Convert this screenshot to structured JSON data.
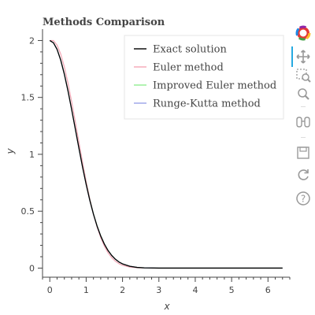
{
  "chart_data": {
    "type": "line",
    "title": "Methods Comparison",
    "xlabel": "x",
    "ylabel": "y",
    "xlim": [
      -0.2,
      6.6
    ],
    "ylim": [
      -0.08,
      2.1
    ],
    "x_ticks": [
      0,
      1,
      2,
      3,
      4,
      5,
      6
    ],
    "y_ticks": [
      0,
      0.5,
      1,
      1.5,
      2
    ],
    "x_tick_labels": [
      "0",
      "1",
      "2",
      "3",
      "4",
      "5",
      "6"
    ],
    "y_tick_labels": [
      "0",
      "0.5",
      "1",
      "1.5",
      "2"
    ],
    "grid": false,
    "legend_position": "top-right",
    "series": [
      {
        "name": "Exact solution",
        "color": "#000000",
        "x": [
          0,
          0.1,
          0.2,
          0.3,
          0.4,
          0.5,
          0.6,
          0.7,
          0.8,
          0.9,
          1.0,
          1.1,
          1.2,
          1.3,
          1.4,
          1.5,
          1.6,
          1.7,
          1.8,
          1.9,
          2.0,
          2.2,
          2.4,
          2.6,
          3.0,
          4.0,
          5.0,
          6.0,
          6.4
        ],
        "y": [
          2.0,
          1.98,
          1.922,
          1.828,
          1.704,
          1.558,
          1.395,
          1.225,
          1.055,
          0.889,
          0.736,
          0.596,
          0.474,
          0.369,
          0.282,
          0.211,
          0.155,
          0.112,
          0.079,
          0.054,
          0.037,
          0.016,
          0.006,
          0.002,
          0.0,
          0.0,
          0.0,
          0.0,
          0.0
        ]
      },
      {
        "name": "Euler method",
        "color": "#f4a6b5",
        "x": [
          0,
          0.1,
          0.2,
          0.3,
          0.4,
          0.5,
          0.6,
          0.7,
          0.8,
          0.9,
          1.0,
          1.1,
          1.2,
          1.3,
          1.4,
          1.5,
          1.6,
          1.7,
          1.8,
          1.9,
          2.0,
          2.2,
          2.4,
          2.6,
          3.0,
          4.0,
          5.0,
          6.0,
          6.4
        ],
        "y": [
          2.0,
          2.0,
          1.96,
          1.882,
          1.769,
          1.627,
          1.465,
          1.289,
          1.109,
          0.932,
          0.764,
          0.611,
          0.476,
          0.362,
          0.268,
          0.193,
          0.135,
          0.092,
          0.061,
          0.039,
          0.024,
          0.009,
          0.003,
          0.001,
          0.0,
          0.0,
          0.0,
          0.0,
          0.0
        ]
      },
      {
        "name": "Improved Euler method",
        "color": "#90ee90",
        "x": [
          0,
          0.1,
          0.2,
          0.3,
          0.4,
          0.5,
          0.6,
          0.7,
          0.8,
          0.9,
          1.0,
          1.1,
          1.2,
          1.3,
          1.4,
          1.5,
          1.6,
          1.7,
          1.8,
          1.9,
          2.0,
          2.2,
          2.4,
          2.6,
          3.0,
          4.0,
          5.0,
          6.0,
          6.4
        ],
        "y": [
          2.0,
          1.98,
          1.923,
          1.83,
          1.707,
          1.561,
          1.399,
          1.229,
          1.059,
          0.894,
          0.741,
          0.601,
          0.478,
          0.373,
          0.285,
          0.214,
          0.157,
          0.113,
          0.08,
          0.055,
          0.037,
          0.016,
          0.006,
          0.002,
          0.0,
          0.0,
          0.0,
          0.0,
          0.0
        ]
      },
      {
        "name": "Runge-Kutta method",
        "color": "#9aa2e8",
        "x": [
          0,
          0.1,
          0.2,
          0.3,
          0.4,
          0.5,
          0.6,
          0.7,
          0.8,
          0.9,
          1.0,
          1.1,
          1.2,
          1.3,
          1.4,
          1.5,
          1.6,
          1.7,
          1.8,
          1.9,
          2.0,
          2.2,
          2.4,
          2.6,
          3.0,
          4.0,
          5.0,
          6.0,
          6.4
        ],
        "y": [
          2.0,
          1.98,
          1.922,
          1.828,
          1.704,
          1.558,
          1.395,
          1.225,
          1.055,
          0.889,
          0.736,
          0.596,
          0.474,
          0.369,
          0.282,
          0.211,
          0.155,
          0.112,
          0.079,
          0.054,
          0.037,
          0.016,
          0.006,
          0.002,
          0.0,
          0.0,
          0.0,
          0.0,
          0.0
        ]
      }
    ]
  },
  "toolbar": {
    "tools": [
      {
        "name": "bokeh-logo-icon",
        "interactable": false
      },
      {
        "name": "pan-icon",
        "interactable": true,
        "active": true
      },
      {
        "name": "box-zoom-icon",
        "interactable": true
      },
      {
        "name": "wheel-zoom-icon",
        "interactable": true
      },
      {
        "name": "hover-icon",
        "interactable": true
      },
      {
        "name": "save-icon",
        "interactable": true
      },
      {
        "name": "reset-icon",
        "interactable": true
      },
      {
        "name": "help-icon",
        "interactable": true
      }
    ],
    "accent_color": "#26aae1"
  }
}
